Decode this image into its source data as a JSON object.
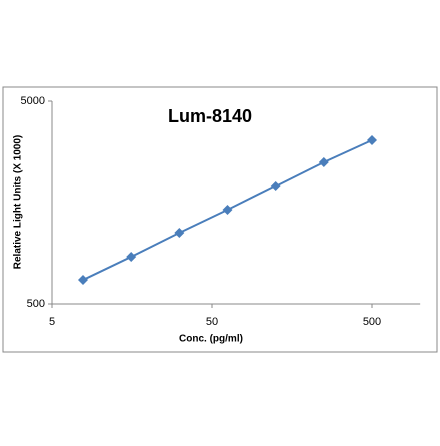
{
  "chart_data": {
    "type": "line",
    "title": "Lum-8140",
    "x_label": "Conc. (pg/ml)",
    "y_label": "Relative Light Units (X 1000)",
    "x": [
      7.8125,
      15.625,
      31.25,
      62.5,
      125,
      250,
      500
    ],
    "series": [
      {
        "name": "Lum-8140",
        "color": "#4a7ebb",
        "values": [
          656,
          852,
          1119,
          1452,
          1907,
          2504,
          3213
        ]
      }
    ],
    "xlim": [
      5,
      1000
    ],
    "xticks": [
      5,
      50,
      500
    ],
    "xlog": true,
    "ylim": [
      500,
      5000
    ],
    "yticks": [
      500,
      5000
    ],
    "ylog": true
  }
}
